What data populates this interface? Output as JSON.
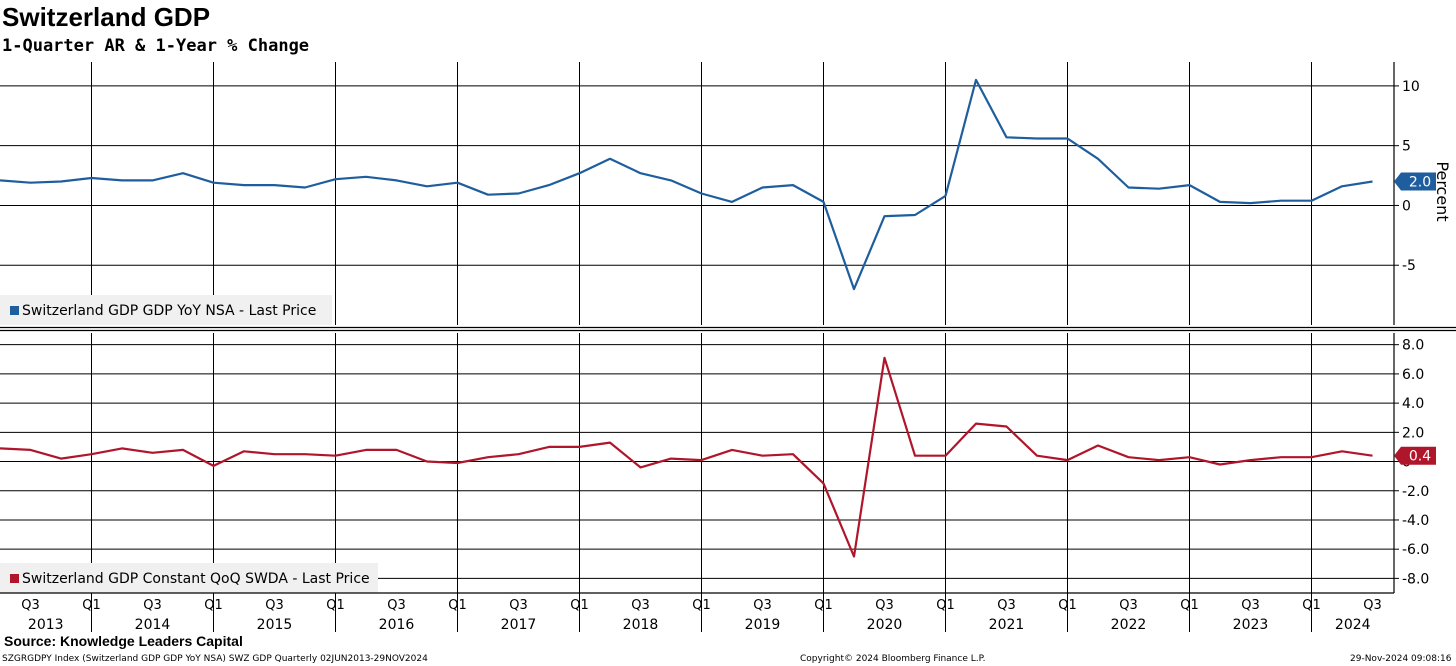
{
  "header": {
    "title": "Switzerland GDP",
    "subtitle": "1-Quarter AR & 1-Year % Change"
  },
  "chart_data": [
    {
      "type": "line",
      "ylabel": "Percent",
      "ylim": [
        -10,
        12
      ],
      "yticks": [
        -5,
        0,
        5,
        10
      ],
      "ytick_labels": [
        "-5",
        "0",
        "5",
        "10"
      ],
      "grid": true,
      "legend_position": "bottom-left",
      "color": "#1f5e9e",
      "series": [
        {
          "name": "Switzerland GDP GDP YoY NSA - Last Price",
          "last_value_label": "2.0",
          "values": [
            2.1,
            1.9,
            2.0,
            2.3,
            2.1,
            2.1,
            2.7,
            1.9,
            1.7,
            1.7,
            1.5,
            2.2,
            2.4,
            2.1,
            1.6,
            1.9,
            0.9,
            1.0,
            1.7,
            2.7,
            3.9,
            2.7,
            2.1,
            1.0,
            0.3,
            1.5,
            1.7,
            0.3,
            -7.0,
            -0.9,
            -0.8,
            0.8,
            10.5,
            5.7,
            5.6,
            5.6,
            3.9,
            1.5,
            1.4,
            1.7,
            0.3,
            0.2,
            0.4,
            0.4,
            1.6,
            2.0
          ]
        }
      ]
    },
    {
      "type": "line",
      "ylim": [
        -9,
        8.8
      ],
      "yticks": [
        -8,
        -6,
        -4,
        -2,
        0,
        2,
        4,
        6,
        8
      ],
      "ytick_labels": [
        "-8.0",
        "-6.0",
        "-4.0",
        "-2.0",
        "0",
        "2.0",
        "4.0",
        "6.0",
        "8.0"
      ],
      "grid": true,
      "legend_position": "bottom-left",
      "color": "#b0162b",
      "series": [
        {
          "name": "Switzerland GDP Constant QoQ SWDA - Last Price",
          "last_value_label": "0.4",
          "values": [
            0.9,
            0.8,
            0.2,
            0.5,
            0.9,
            0.6,
            0.8,
            -0.3,
            0.7,
            0.5,
            0.5,
            0.4,
            0.8,
            0.8,
            0.0,
            -0.1,
            0.3,
            0.5,
            1.0,
            1.0,
            1.3,
            -0.4,
            0.2,
            0.1,
            0.8,
            0.4,
            0.5,
            -1.5,
            -6.5,
            7.1,
            0.4,
            0.4,
            2.6,
            2.4,
            0.4,
            0.1,
            1.1,
            0.3,
            0.1,
            0.3,
            -0.2,
            0.1,
            0.3,
            0.3,
            0.7,
            0.4
          ]
        }
      ]
    }
  ],
  "x_axis": {
    "start_quarter": "2013 Q2",
    "quarter_labels": [
      "Q3",
      "Q1",
      "Q3",
      "Q1",
      "Q3",
      "Q1",
      "Q3",
      "Q1",
      "Q3",
      "Q1",
      "Q3",
      "Q1",
      "Q3",
      "Q1",
      "Q3",
      "Q1",
      "Q3",
      "Q1",
      "Q3",
      "Q1",
      "Q3",
      "Q1",
      "Q3"
    ],
    "years": [
      "2013",
      "2014",
      "2015",
      "2016",
      "2017",
      "2018",
      "2019",
      "2020",
      "2021",
      "2022",
      "2023",
      "2024"
    ]
  },
  "footer": {
    "source": "Source: Knowledge Leaders Capital",
    "left": "SZGRGDPY Index (Switzerland GDP GDP YoY NSA) SWZ GDP  Quarterly 02JUN2013-29NOV2024",
    "center": "Copyright© 2024 Bloomberg Finance L.P.",
    "right": "29-Nov-2024 09:08:16"
  }
}
